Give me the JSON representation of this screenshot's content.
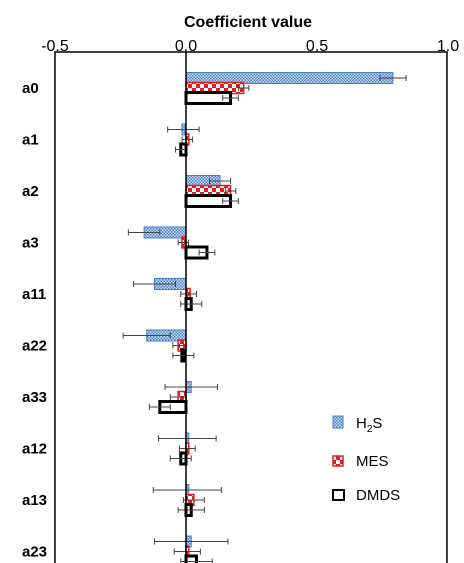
{
  "chart_data": {
    "type": "bar",
    "orientation": "horizontal",
    "title": "",
    "xlabel": "Coefficient value",
    "ylabel": "",
    "xlim": [
      -0.5,
      1.0
    ],
    "xticks": [
      -0.5,
      0.0,
      0.5,
      1.0
    ],
    "xtick_labels": [
      "-0.5",
      "0.0",
      "0.5",
      "1.0"
    ],
    "x_axis_position": "top",
    "grid": false,
    "legend_position": "bottom-right",
    "categories": [
      "a0",
      "a1",
      "a2",
      "a3",
      "a11",
      "a22",
      "a33",
      "a12",
      "a13",
      "a23"
    ],
    "series": [
      {
        "name": "H2S",
        "name_base": "H",
        "name_sub": "2",
        "name_tail": "S",
        "pattern": "dotted-blue",
        "color": "#5b8fd4",
        "values": [
          0.79,
          -0.01,
          0.13,
          -0.16,
          -0.12,
          -0.15,
          0.02,
          0.005,
          0.005,
          0.02
        ],
        "errors": [
          0.05,
          0.06,
          0.04,
          0.06,
          0.08,
          0.09,
          0.1,
          0.11,
          0.13,
          0.14
        ]
      },
      {
        "name": "MES",
        "pattern": "checker-red",
        "color": "#e02020",
        "values": [
          0.22,
          0.005,
          0.17,
          -0.01,
          0.01,
          -0.03,
          -0.03,
          0.005,
          0.03,
          0.005
        ],
        "errors": [
          0.02,
          0.02,
          0.02,
          0.02,
          0.03,
          0.02,
          0.03,
          0.03,
          0.04,
          0.05
        ]
      },
      {
        "name": "DMDS",
        "pattern": "outline-black",
        "color": "#000000",
        "values": [
          0.17,
          -0.02,
          0.17,
          0.08,
          0.02,
          -0.01,
          -0.1,
          -0.02,
          0.02,
          0.04
        ],
        "errors": [
          0.03,
          0.02,
          0.03,
          0.03,
          0.04,
          0.04,
          0.04,
          0.04,
          0.05,
          0.06
        ]
      }
    ]
  }
}
